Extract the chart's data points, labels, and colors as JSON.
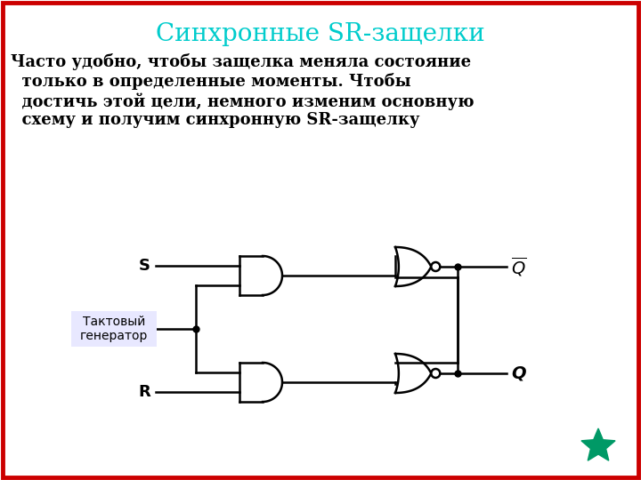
{
  "title": "Синхронные SR-защелки",
  "title_color": "#00CCCC",
  "title_fontsize": 20,
  "body_text_lines": [
    "Часто удобно, чтобы защелка меняла состояние",
    "  только в определенные моменты. Чтобы",
    "  достичь этой цели, немного изменим основную",
    "  схему и получим синхронную SR-защелку"
  ],
  "body_fontsize": 13,
  "clock_label": "Тактовый\nгенератор",
  "background_color": "#FFFFFF",
  "border_color": "#CC0000",
  "line_color": "#000000",
  "star_color": "#009966",
  "clock_box_color": "#E8E8FF"
}
